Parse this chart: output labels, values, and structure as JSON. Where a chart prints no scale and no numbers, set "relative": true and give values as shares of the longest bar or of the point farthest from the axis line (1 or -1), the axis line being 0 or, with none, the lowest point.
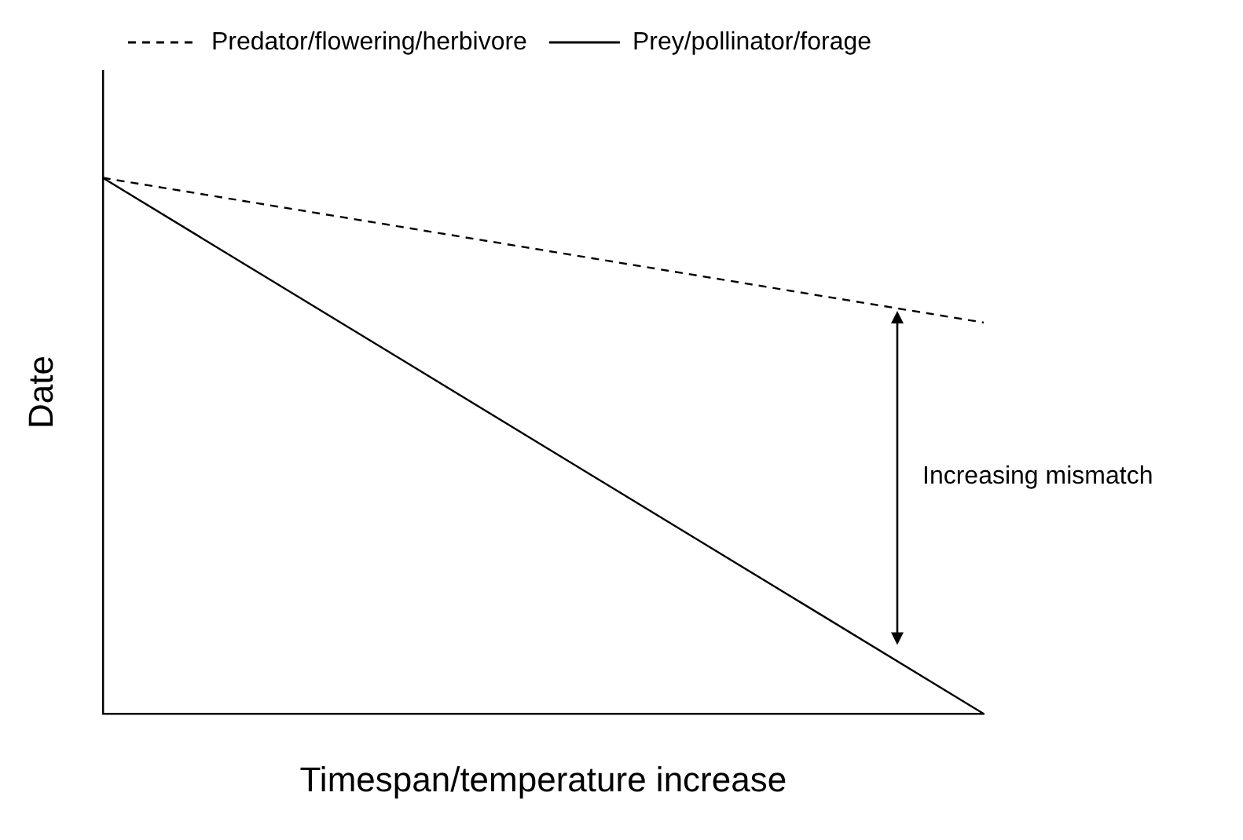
{
  "chart_data": {
    "type": "line",
    "relative": true,
    "xlabel": "Timespan/temperature increase",
    "ylabel": "Date",
    "categories": [
      null,
      null
    ],
    "series": [
      {
        "name": "Predator/flowering/herbivore",
        "color": "#000000",
        "line_style": "dashed",
        "values": [
          1,
          0.73
        ]
      },
      {
        "name": "Prey/pollinator/forage",
        "color": "#000000",
        "line_style": "solid",
        "values": [
          1,
          0
        ]
      }
    ],
    "marker": "none",
    "grid": false,
    "legend": "top",
    "tick_labels": false,
    "annotations": [
      "Increasing mismatch"
    ]
  }
}
